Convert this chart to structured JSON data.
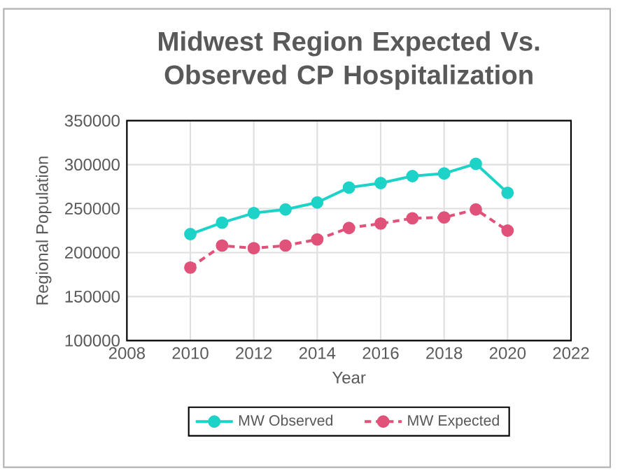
{
  "chart_data": {
    "type": "line",
    "title": "Midwest Region Expected Vs. Observed CP Hospitalization",
    "xlabel": "Year",
    "ylabel": "Regional Population",
    "x": [
      2010,
      2011,
      2012,
      2013,
      2014,
      2015,
      2016,
      2017,
      2018,
      2019,
      2020
    ],
    "series": [
      {
        "name": "MW Observed",
        "color": "#1dd3c8",
        "line_style": "solid",
        "values": [
          221000,
          234000,
          245000,
          249000,
          257000,
          274000,
          279000,
          287000,
          290000,
          301000,
          268000
        ]
      },
      {
        "name": "MW Expected",
        "color": "#e0527a",
        "line_style": "dashed",
        "values": [
          183000,
          208000,
          205000,
          208000,
          215000,
          228000,
          233000,
          239000,
          240000,
          249000,
          225000
        ]
      }
    ],
    "xlim": [
      2008,
      2022
    ],
    "xticks": [
      2008,
      2010,
      2012,
      2014,
      2016,
      2018,
      2020,
      2022
    ],
    "ylim": [
      100000,
      350000
    ],
    "yticks": [
      100000,
      150000,
      200000,
      250000,
      300000,
      350000
    ],
    "grid": true,
    "legend": "bottom",
    "marker": "circle"
  }
}
